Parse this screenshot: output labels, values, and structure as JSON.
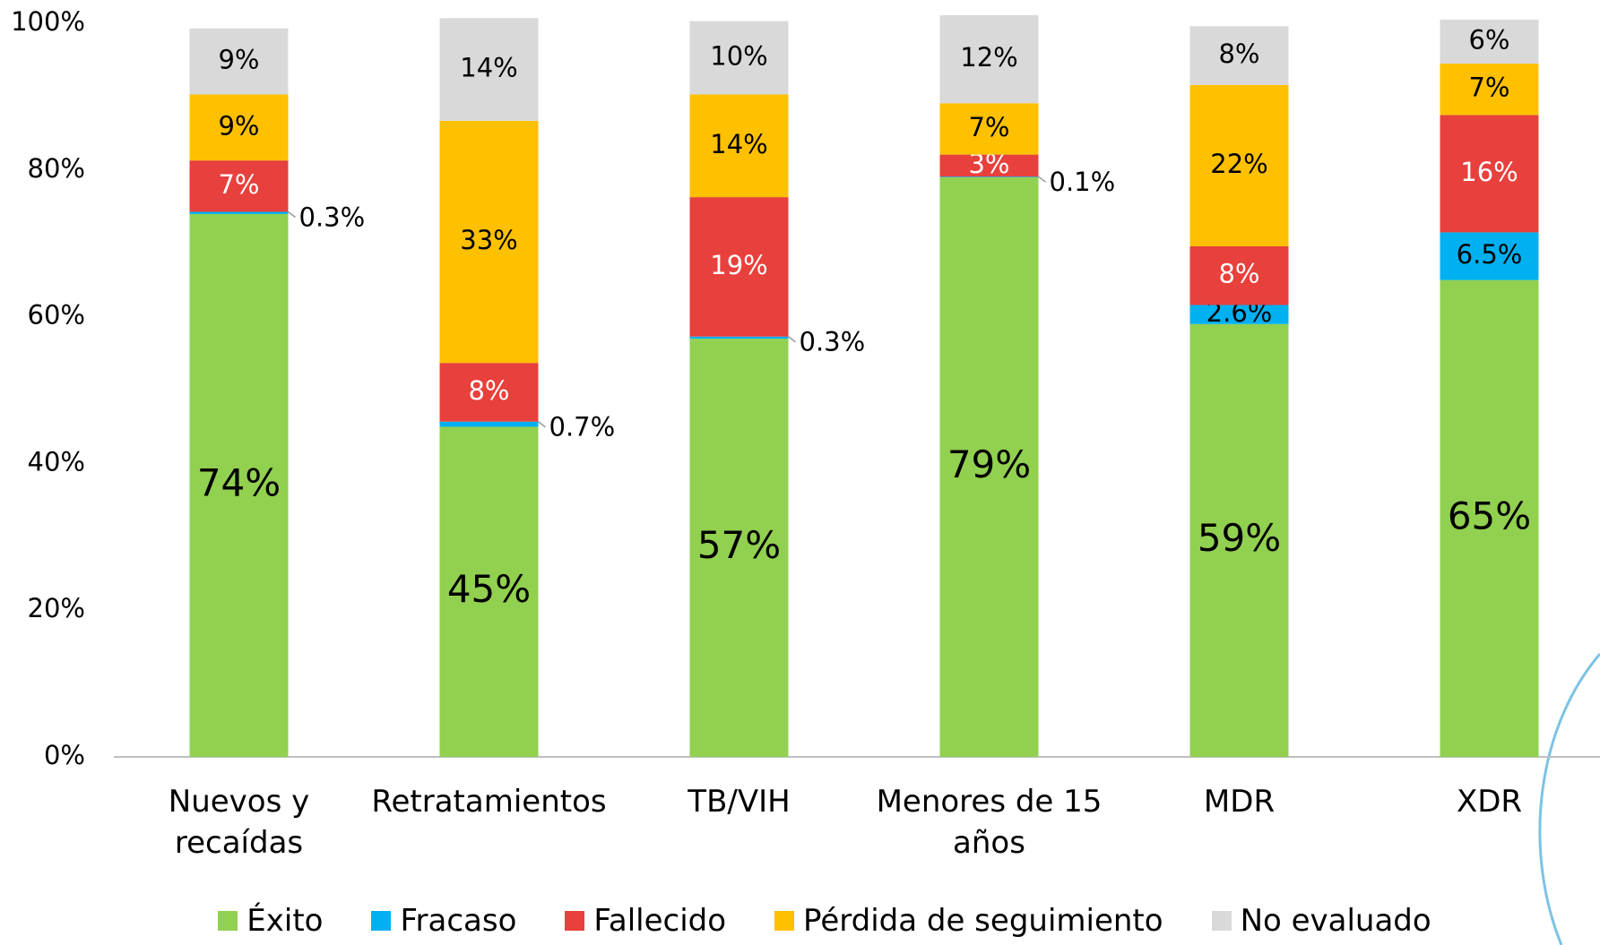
{
  "chart_data": {
    "type": "stacked-bar",
    "categories": [
      "Nuevos y\nrecaídas",
      "Retratamientos",
      "TB/VIH",
      "Menores de 15\naños",
      "MDR",
      "XDR"
    ],
    "series": [
      {
        "name": "Éxito",
        "color": "#92d050",
        "values": [
          74,
          45,
          57,
          79,
          59,
          65
        ],
        "value_labels": [
          "74%",
          "45%",
          "57%",
          "79%",
          "59%",
          "65%"
        ]
      },
      {
        "name": "Fracaso",
        "color": "#00b0f0",
        "values": [
          0.3,
          0.7,
          0.3,
          0.1,
          2.6,
          6.5
        ],
        "value_labels": [
          "0.3%",
          "0.7%",
          "0.3%",
          "0.1%",
          "2.6%",
          "6.5%"
        ]
      },
      {
        "name": "Fallecido",
        "color": "#e8403c",
        "values": [
          7,
          8,
          19,
          3,
          8,
          16
        ],
        "value_labels": [
          "7%",
          "8%",
          "19%",
          "3%",
          "8%",
          "16%"
        ]
      },
      {
        "name": "Pérdida de seguimiento",
        "color": "#ffc000",
        "values": [
          9,
          33,
          14,
          7,
          22,
          7
        ],
        "value_labels": [
          "9%",
          "33%",
          "14%",
          "7%",
          "22%",
          "7%"
        ]
      },
      {
        "name": "No evaluado",
        "color": "#d9d9d9",
        "values": [
          9,
          14,
          10,
          12,
          8,
          6
        ],
        "value_labels": [
          "9%",
          "14%",
          "10%",
          "12%",
          "8%",
          "6%"
        ]
      }
    ],
    "ylim": [
      0,
      100
    ],
    "yticks": [
      {
        "value": 0,
        "label": "0%"
      },
      {
        "value": 20,
        "label": "20%"
      },
      {
        "value": 40,
        "label": "40%"
      },
      {
        "value": 60,
        "label": "60%"
      },
      {
        "value": 80,
        "label": "80%"
      },
      {
        "value": 100,
        "label": "100%"
      }
    ],
    "legend": "bottom"
  }
}
